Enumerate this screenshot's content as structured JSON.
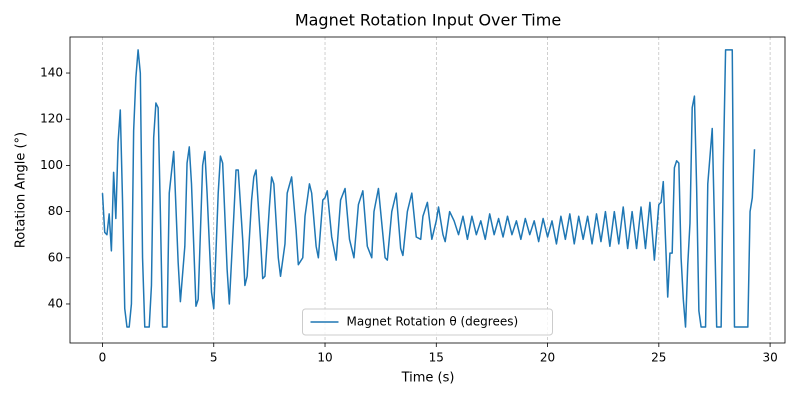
{
  "chart_data": {
    "type": "line",
    "title": "Magnet Rotation Input Over Time",
    "xlabel": "Time (s)",
    "ylabel": "Rotation Angle (°)",
    "xlim": [
      -1.46,
      30.67
    ],
    "ylim": [
      23.1,
      155.6
    ],
    "xticks": [
      0,
      5,
      10,
      15,
      20,
      25,
      30
    ],
    "yticks": [
      40,
      60,
      80,
      100,
      120,
      140
    ],
    "grid": "x",
    "legend": "lower center",
    "x": [
      0,
      0.1,
      0.2,
      0.3,
      0.4,
      0.5,
      0.6,
      0.7,
      0.8,
      0.9,
      1.0,
      1.1,
      1.2,
      1.3,
      1.4,
      1.5,
      1.6,
      1.7,
      1.8,
      1.9,
      2.0,
      2.1,
      2.2,
      2.3,
      2.4,
      2.5,
      2.6,
      2.7,
      2.8,
      2.9,
      3.0,
      3.2,
      3.4,
      3.5,
      3.7,
      3.8,
      3.9,
      4.0,
      4.2,
      4.3,
      4.5,
      4.6,
      4.7,
      4.9,
      5.0,
      5.2,
      5.3,
      5.4,
      5.6,
      5.7,
      5.9,
      6.0,
      6.1,
      6.3,
      6.4,
      6.5,
      6.7,
      6.8,
      6.9,
      7.1,
      7.2,
      7.3,
      7.5,
      7.6,
      7.7,
      7.9,
      8.0,
      8.2,
      8.3,
      8.5,
      8.7,
      8.8,
      9.0,
      9.1,
      9.3,
      9.4,
      9.6,
      9.7,
      9.9,
      10.0,
      10.1,
      10.3,
      10.5,
      10.7,
      10.9,
      11.1,
      11.3,
      11.5,
      11.7,
      11.9,
      12.1,
      12.2,
      12.4,
      12.6,
      12.7,
      12.8,
      13.0,
      13.2,
      13.4,
      13.5,
      13.7,
      13.9,
      14.1,
      14.3,
      14.4,
      14.6,
      14.8,
      14.9,
      15.0,
      15.1,
      15.3,
      15.4,
      15.6,
      15.8,
      16.0,
      16.2,
      16.4,
      16.6,
      16.8,
      17.0,
      17.2,
      17.4,
      17.6,
      17.8,
      18.0,
      18.2,
      18.4,
      18.6,
      18.8,
      19.0,
      19.2,
      19.4,
      19.6,
      19.8,
      20.0,
      20.2,
      20.4,
      20.6,
      20.8,
      21.0,
      21.2,
      21.4,
      21.6,
      21.8,
      22.0,
      22.2,
      22.4,
      22.6,
      22.8,
      23.0,
      23.2,
      23.4,
      23.6,
      23.8,
      24.0,
      24.2,
      24.4,
      24.6,
      24.8,
      25.0,
      25.1,
      25.2,
      25.3,
      25.4,
      25.5,
      25.6,
      25.7,
      25.8,
      25.9,
      26.0,
      26.1,
      26.2,
      26.3,
      26.4,
      26.5,
      26.6,
      26.7,
      26.8,
      26.9,
      27.0,
      27.1,
      27.2,
      27.4,
      27.5,
      27.6,
      27.7,
      27.8,
      27.9,
      28.0,
      28.2,
      28.3,
      28.4,
      28.6,
      28.8,
      29.0,
      29.1,
      29.2,
      29.3
    ],
    "series": [
      {
        "name": "Magnet Rotation θ (degrees)",
        "color": "#1f77b4",
        "values": [
          88,
          71,
          70,
          79,
          63,
          97,
          77,
          110,
          124,
          85,
          38,
          30,
          30,
          40,
          115,
          138,
          150,
          140,
          60,
          30,
          30,
          30,
          48,
          112,
          127,
          125,
          80,
          30,
          30,
          30,
          88,
          106,
          58,
          41,
          65,
          101,
          108,
          92,
          39,
          42,
          100,
          106,
          88,
          45,
          38,
          88,
          104,
          101,
          55,
          40,
          78,
          98,
          98,
          68,
          48,
          52,
          85,
          95,
          98,
          68,
          51,
          52,
          82,
          95,
          92,
          60,
          52,
          66,
          88,
          95,
          72,
          57,
          60,
          78,
          92,
          88,
          65,
          60,
          85,
          86,
          89,
          69,
          59,
          85,
          90,
          68,
          60,
          83,
          89,
          65,
          60,
          80,
          90,
          70,
          60,
          59,
          80,
          88,
          64,
          61,
          80,
          88,
          69,
          68,
          78,
          84,
          68,
          72,
          76,
          82,
          70,
          67,
          80,
          76,
          70,
          78,
          68,
          78,
          70,
          76,
          68,
          79,
          70,
          77,
          69,
          78,
          70,
          76,
          68,
          77,
          70,
          76,
          67,
          77,
          69,
          76,
          66,
          78,
          68,
          79,
          66,
          78,
          68,
          78,
          66,
          79,
          67,
          80,
          65,
          80,
          66,
          82,
          64,
          80,
          64,
          82,
          64,
          84,
          59,
          83,
          84,
          93,
          68,
          43,
          62,
          62,
          99,
          102,
          101,
          60,
          42,
          30,
          57,
          75,
          125,
          130,
          90,
          37,
          30,
          30,
          30,
          92,
          116,
          75,
          30,
          30,
          30,
          100,
          150,
          150,
          150,
          30,
          30,
          30,
          30,
          80,
          86,
          107
        ]
      }
    ]
  }
}
